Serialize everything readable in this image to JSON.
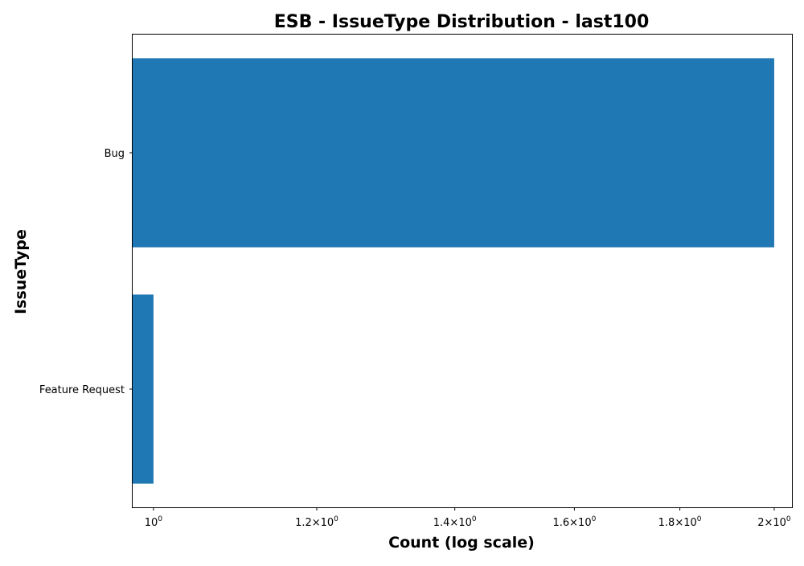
{
  "chart_data": {
    "type": "bar",
    "orientation": "horizontal",
    "title": "ESB - IssueType Distribution - last100",
    "xlabel": "Count (log scale)",
    "ylabel": "IssueType",
    "x_scale": "log",
    "xlim": [
      0.977,
      2.04
    ],
    "categories": [
      "Bug",
      "Feature Request"
    ],
    "values": [
      2,
      1
    ],
    "x_ticks": [
      {
        "value": 1.0,
        "base": "10",
        "exp": "0",
        "mult": ""
      },
      {
        "value": 1.2,
        "base": "10",
        "exp": "0",
        "mult": "1.2×"
      },
      {
        "value": 1.4,
        "base": "10",
        "exp": "0",
        "mult": "1.4×"
      },
      {
        "value": 1.6,
        "base": "10",
        "exp": "0",
        "mult": "1.6×"
      },
      {
        "value": 1.8,
        "base": "10",
        "exp": "0",
        "mult": "1.8×"
      },
      {
        "value": 2.0,
        "base": "10",
        "exp": "0",
        "mult": "2×"
      }
    ],
    "bar_color": "#1f77b4",
    "grid": false,
    "legend": "none"
  }
}
